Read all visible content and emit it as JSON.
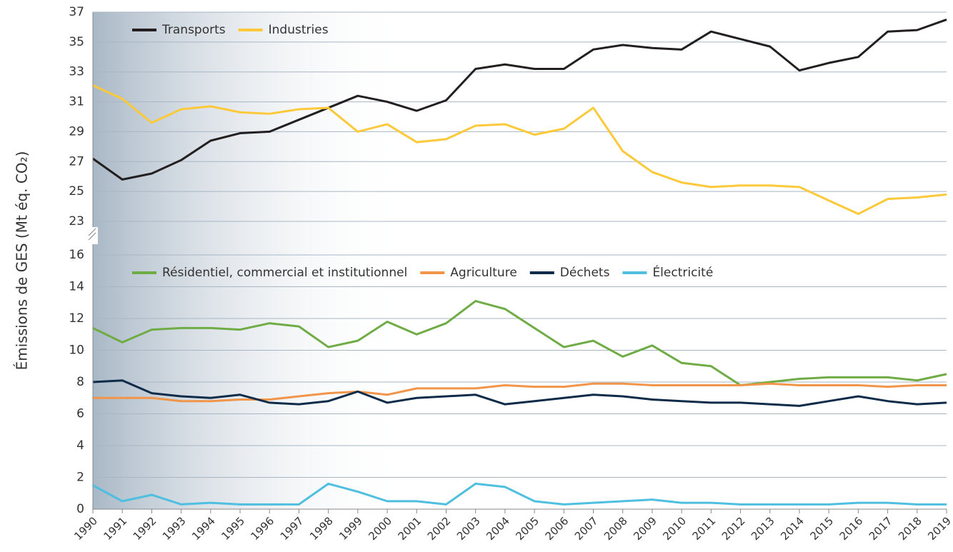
{
  "chart_data": {
    "type": "line",
    "ylabel": "Émissions de GES (Mt éq. CO₂)",
    "grid": true,
    "categories": [
      "1990",
      "1991",
      "1992",
      "1993",
      "1994",
      "1995",
      "1996",
      "1997",
      "1998",
      "1999",
      "2000",
      "2001",
      "2002",
      "2003",
      "2004",
      "2005",
      "2006",
      "2007",
      "2008",
      "2009",
      "2010",
      "2011",
      "2012",
      "2013",
      "2014",
      "2015",
      "2016",
      "2017",
      "2018",
      "2019"
    ],
    "panels": [
      {
        "ylim": [
          23,
          37
        ],
        "yticks": [
          23,
          25,
          27,
          29,
          31,
          33,
          35,
          37
        ],
        "legend": "top-left",
        "series": [
          {
            "name": "Transports",
            "color": "#231f20",
            "values": [
              27.2,
              25.8,
              26.2,
              27.1,
              28.4,
              28.9,
              29.0,
              29.8,
              30.6,
              31.4,
              31.0,
              30.4,
              31.1,
              33.2,
              33.5,
              33.2,
              33.2,
              34.5,
              34.8,
              34.6,
              34.5,
              35.7,
              35.2,
              34.7,
              33.1,
              33.6,
              34.0,
              35.7,
              35.8,
              36.5
            ]
          },
          {
            "name": "Industries",
            "color": "#fcc93a",
            "values": [
              32.1,
              31.2,
              29.6,
              30.5,
              30.7,
              30.3,
              30.2,
              30.5,
              30.6,
              29.0,
              29.5,
              28.3,
              28.5,
              29.4,
              29.5,
              28.8,
              29.2,
              30.6,
              27.7,
              26.3,
              25.6,
              25.3,
              25.4,
              25.4,
              25.3,
              24.4,
              23.5,
              24.5,
              24.6,
              24.8
            ]
          }
        ]
      },
      {
        "ylim": [
          0,
          16
        ],
        "yticks": [
          0,
          2,
          4,
          6,
          8,
          10,
          12,
          14,
          16
        ],
        "legend": "top-left",
        "series": [
          {
            "name": "Résidentiel, commercial et institutionnel",
            "color": "#6fac46",
            "values": [
              11.4,
              10.5,
              11.3,
              11.4,
              11.4,
              11.3,
              11.7,
              11.5,
              10.2,
              10.6,
              11.8,
              11.0,
              11.7,
              13.1,
              12.6,
              11.4,
              10.2,
              10.6,
              9.6,
              10.3,
              9.2,
              9.0,
              7.8,
              8.0,
              8.2,
              8.3,
              8.3,
              8.3,
              8.1,
              8.5
            ]
          },
          {
            "name": "Agriculture",
            "color": "#f0954a",
            "values": [
              7.0,
              7.0,
              7.0,
              6.8,
              6.8,
              6.9,
              6.9,
              7.1,
              7.3,
              7.4,
              7.2,
              7.6,
              7.6,
              7.6,
              7.8,
              7.7,
              7.7,
              7.9,
              7.9,
              7.8,
              7.8,
              7.8,
              7.8,
              7.9,
              7.8,
              7.8,
              7.8,
              7.7,
              7.8,
              7.8
            ]
          },
          {
            "name": "Déchets",
            "color": "#0e2c4a",
            "values": [
              8.0,
              8.1,
              7.3,
              7.1,
              7.0,
              7.2,
              6.7,
              6.6,
              6.8,
              7.4,
              6.7,
              7.0,
              7.1,
              7.2,
              6.6,
              6.8,
              7.0,
              7.2,
              7.1,
              6.9,
              6.8,
              6.7,
              6.7,
              6.6,
              6.5,
              6.8,
              7.1,
              6.8,
              6.6,
              6.7
            ]
          },
          {
            "name": "Électricité",
            "color": "#4fbfe0",
            "values": [
              1.5,
              0.5,
              0.9,
              0.3,
              0.4,
              0.3,
              0.3,
              0.3,
              1.6,
              1.1,
              0.5,
              0.5,
              0.3,
              1.6,
              1.4,
              0.5,
              0.3,
              0.4,
              0.5,
              0.6,
              0.4,
              0.4,
              0.3,
              0.3,
              0.3,
              0.3,
              0.4,
              0.4,
              0.3,
              0.3
            ]
          }
        ]
      }
    ]
  }
}
